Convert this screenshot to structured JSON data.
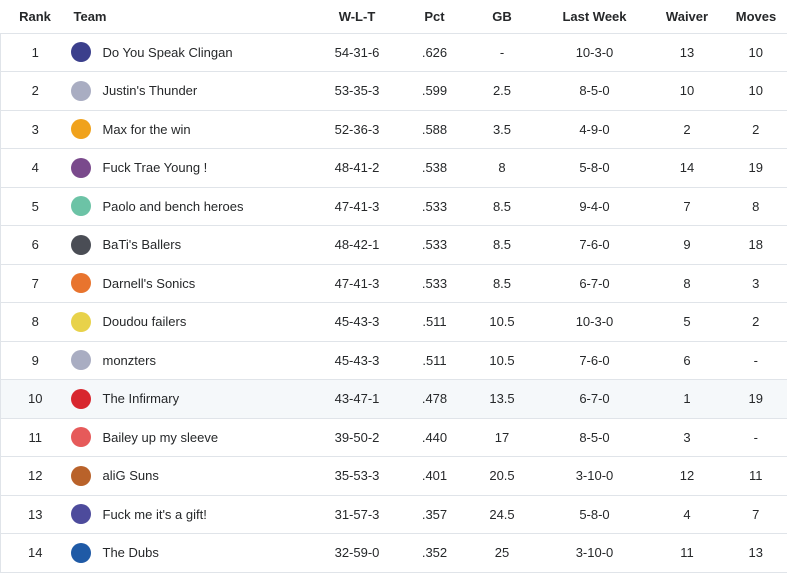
{
  "headers": {
    "rank": "Rank",
    "team": "Team",
    "wlt": "W-L-T",
    "pct": "Pct",
    "gb": "GB",
    "last_week": "Last Week",
    "waiver": "Waiver",
    "moves": "Moves"
  },
  "rows": [
    {
      "rank": "1",
      "team": "Do You Speak Clingan",
      "wlt": "54-31-6",
      "pct": ".626",
      "gb": "-",
      "last_week": "10-3-0",
      "waiver": "13",
      "moves": "10",
      "logo_color": "#3b3f8c",
      "logo_icon": "player-photo-icon"
    },
    {
      "rank": "2",
      "team": "Justin's Thunder",
      "wlt": "53-35-3",
      "pct": ".599",
      "gb": "2.5",
      "last_week": "8-5-0",
      "waiver": "10",
      "moves": "10",
      "logo_color": "#a9adc2",
      "logo_icon": "jersey-icon"
    },
    {
      "rank": "3",
      "team": "Max for the win",
      "wlt": "52-36-3",
      "pct": ".588",
      "gb": "3.5",
      "last_week": "4-9-0",
      "waiver": "2",
      "moves": "2",
      "logo_color": "#f0a21c",
      "logo_icon": "player-photo-icon"
    },
    {
      "rank": "4",
      "team": "Fuck Trae Young !",
      "wlt": "48-41-2",
      "pct": ".538",
      "gb": "8",
      "last_week": "5-8-0",
      "waiver": "14",
      "moves": "19",
      "logo_color": "#7a4a8c",
      "logo_icon": "player-photo-icon"
    },
    {
      "rank": "5",
      "team": "Paolo and bench heroes",
      "wlt": "47-41-3",
      "pct": ".533",
      "gb": "8.5",
      "last_week": "9-4-0",
      "waiver": "7",
      "moves": "8",
      "logo_color": "#6cc3a6",
      "logo_icon": "ambulance-icon"
    },
    {
      "rank": "6",
      "team": "BaTi's Ballers",
      "wlt": "48-42-1",
      "pct": ".533",
      "gb": "8.5",
      "last_week": "7-6-0",
      "waiver": "9",
      "moves": "18",
      "logo_color": "#4a4d55",
      "logo_icon": "jersey-icon"
    },
    {
      "rank": "7",
      "team": "Darnell's Sonics",
      "wlt": "47-41-3",
      "pct": ".533",
      "gb": "8.5",
      "last_week": "6-7-0",
      "waiver": "8",
      "moves": "3",
      "logo_color": "#e8742e",
      "logo_icon": "jersey-icon"
    },
    {
      "rank": "8",
      "team": "Doudou failers",
      "wlt": "45-43-3",
      "pct": ".511",
      "gb": "10.5",
      "last_week": "10-3-0",
      "waiver": "5",
      "moves": "2",
      "logo_color": "#e8d24a",
      "logo_icon": "jersey-icon"
    },
    {
      "rank": "9",
      "team": "monzters",
      "wlt": "45-43-3",
      "pct": ".511",
      "gb": "10.5",
      "last_week": "7-6-0",
      "waiver": "6",
      "moves": "-",
      "logo_color": "#a9adc2",
      "logo_icon": "jersey-icon"
    },
    {
      "rank": "10",
      "team": "The Infirmary",
      "wlt": "43-47-1",
      "pct": ".478",
      "gb": "13.5",
      "last_week": "6-7-0",
      "waiver": "1",
      "moves": "19",
      "logo_color": "#d8262e",
      "logo_icon": "medical-cross-icon"
    },
    {
      "rank": "11",
      "team": "Bailey up my sleeve",
      "wlt": "39-50-2",
      "pct": ".440",
      "gb": "17",
      "last_week": "8-5-0",
      "waiver": "3",
      "moves": "-",
      "logo_color": "#e65a5a",
      "logo_icon": "playing-card-icon"
    },
    {
      "rank": "12",
      "team": "aliG Suns",
      "wlt": "35-53-3",
      "pct": ".401",
      "gb": "20.5",
      "last_week": "3-10-0",
      "waiver": "12",
      "moves": "11",
      "logo_color": "#b9622a",
      "logo_icon": "player-photo-icon"
    },
    {
      "rank": "13",
      "team": "Fuck me it's a gift!",
      "wlt": "31-57-3",
      "pct": ".357",
      "gb": "24.5",
      "last_week": "5-8-0",
      "waiver": "4",
      "moves": "7",
      "logo_color": "#4d4b9c",
      "logo_icon": "player-photo-icon"
    },
    {
      "rank": "14",
      "team": "The Dubs",
      "wlt": "32-59-0",
      "pct": ".352",
      "gb": "25",
      "last_week": "3-10-0",
      "waiver": "11",
      "moves": "13",
      "logo_color": "#1f5aa6",
      "logo_icon": "team-logo-icon"
    }
  ],
  "highlight_row": "10"
}
